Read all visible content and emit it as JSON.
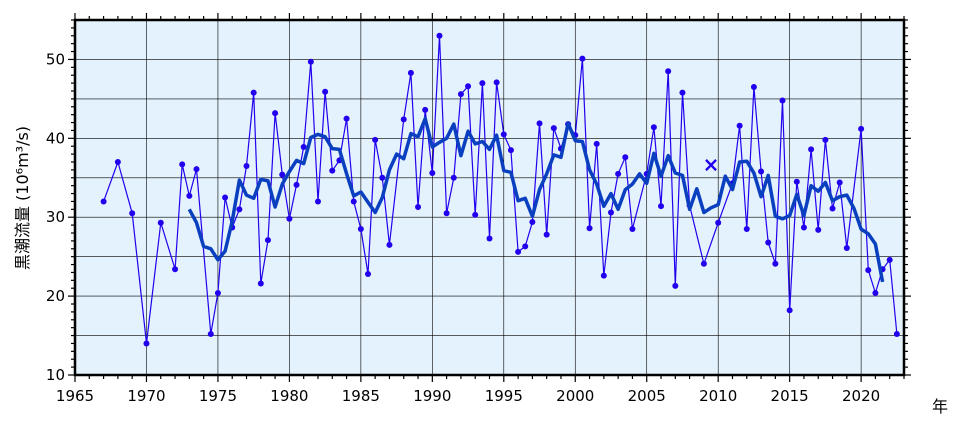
{
  "chart_data": {
    "type": "line",
    "ylabel": "黒潮流量 (10⁶m³/s)",
    "xlabel": "年",
    "xlim": [
      1965,
      2023
    ],
    "ylim": [
      10,
      55
    ],
    "x_ticks": [
      1965,
      1970,
      1975,
      1980,
      1985,
      1990,
      1995,
      2000,
      2005,
      2010,
      2015,
      2020
    ],
    "y_ticks": [
      10,
      20,
      30,
      40,
      50
    ],
    "grid": true,
    "colors": {
      "plot_background": "#e3f2fc",
      "raw_series": "#2200ee",
      "smoothed_series": "#0a3fbf",
      "grid": "#000000"
    },
    "series": [
      {
        "style": "thin-line-with-dots",
        "points": [
          [
            1967,
            32.0
          ],
          [
            1968,
            37.0
          ],
          [
            1969,
            30.5
          ],
          [
            1970,
            14.0
          ],
          [
            1971,
            29.3
          ],
          [
            1972,
            23.4
          ],
          [
            1972.5,
            36.7
          ],
          [
            1973,
            32.7
          ],
          [
            1973.5,
            36.1
          ],
          [
            1974.5,
            15.2
          ],
          [
            1975,
            20.4
          ],
          [
            1975.5,
            32.5
          ],
          [
            1976,
            28.7
          ],
          [
            1976.5,
            31.0
          ],
          [
            1977,
            36.5
          ],
          [
            1977.5,
            45.8
          ],
          [
            1978,
            21.6
          ],
          [
            1978.5,
            27.1
          ],
          [
            1979,
            43.2
          ],
          [
            1979.5,
            35.4
          ],
          [
            1980,
            29.8
          ],
          [
            1980.5,
            34.1
          ],
          [
            1981,
            38.9
          ],
          [
            1981.5,
            49.7
          ],
          [
            1982,
            32.0
          ],
          [
            1982.5,
            45.9
          ],
          [
            1983,
            35.9
          ],
          [
            1983.5,
            37.2
          ],
          [
            1984,
            42.5
          ],
          [
            1984.5,
            32.0
          ],
          [
            1985,
            28.5
          ],
          [
            1985.5,
            22.8
          ],
          [
            1986,
            39.8
          ],
          [
            1986.5,
            35.0
          ],
          [
            1987,
            26.5
          ],
          [
            1988,
            42.4
          ],
          [
            1988.5,
            48.3
          ],
          [
            1989,
            31.3
          ],
          [
            1989.5,
            43.6
          ],
          [
            1990,
            35.6
          ],
          [
            1990.5,
            53.0
          ],
          [
            1991,
            30.5
          ],
          [
            1991.5,
            35.0
          ],
          [
            1992,
            45.6
          ],
          [
            1992.5,
            46.6
          ],
          [
            1993,
            30.3
          ],
          [
            1993.5,
            47.0
          ],
          [
            1994,
            27.3
          ],
          [
            1994.5,
            47.1
          ],
          [
            1995,
            40.5
          ],
          [
            1995.5,
            38.5
          ],
          [
            1996,
            25.6
          ],
          [
            1996.5,
            26.3
          ],
          [
            1997,
            29.4
          ],
          [
            1997.5,
            41.9
          ],
          [
            1998,
            27.8
          ],
          [
            1998.5,
            41.3
          ],
          [
            1999,
            38.7
          ],
          [
            1999.5,
            41.8
          ],
          [
            2000,
            40.4
          ],
          [
            2000.5,
            50.1
          ],
          [
            2001,
            28.6
          ],
          [
            2001.5,
            39.3
          ],
          [
            2002,
            22.6
          ],
          [
            2002.5,
            30.6
          ],
          [
            2003,
            35.5
          ],
          [
            2003.5,
            37.6
          ],
          [
            2004,
            28.5
          ],
          [
            2005,
            35.5
          ],
          [
            2005.5,
            41.4
          ],
          [
            2006,
            31.4
          ],
          [
            2006.5,
            48.5
          ],
          [
            2007,
            21.3
          ],
          [
            2007.5,
            45.8
          ],
          [
            2008,
            31.5
          ],
          [
            2009,
            24.1
          ],
          [
            2010,
            29.3
          ],
          [
            2011,
            34.3
          ],
          [
            2011.5,
            41.6
          ],
          [
            2012,
            28.5
          ],
          [
            2012.5,
            46.5
          ],
          [
            2013,
            35.8
          ],
          [
            2013.5,
            26.8
          ],
          [
            2014,
            24.1
          ],
          [
            2014.5,
            44.8
          ],
          [
            2015,
            18.2
          ],
          [
            2015.5,
            34.5
          ],
          [
            2016,
            28.7
          ],
          [
            2016.5,
            38.6
          ],
          [
            2017,
            28.4
          ],
          [
            2017.5,
            39.8
          ],
          [
            2018,
            31.1
          ],
          [
            2018.5,
            34.4
          ],
          [
            2019,
            26.1
          ],
          [
            2020,
            41.2
          ],
          [
            2020.5,
            23.3
          ],
          [
            2021,
            20.4
          ],
          [
            2021.5,
            23.4
          ],
          [
            2022,
            24.6
          ],
          [
            2022.5,
            15.2
          ]
        ]
      },
      {
        "style": "thick-smoothed-line",
        "points": [
          [
            1973,
            31.0
          ],
          [
            1973.5,
            29.3
          ],
          [
            1974,
            26.3
          ],
          [
            1974.5,
            26.0
          ],
          [
            1975,
            24.6
          ],
          [
            1975.5,
            25.7
          ],
          [
            1976,
            29.5
          ],
          [
            1976.5,
            34.7
          ],
          [
            1977,
            32.8
          ],
          [
            1977.5,
            32.4
          ],
          [
            1978,
            34.8
          ],
          [
            1978.5,
            34.6
          ],
          [
            1979,
            31.3
          ],
          [
            1979.5,
            34.2
          ],
          [
            1980,
            35.8
          ],
          [
            1980.5,
            37.2
          ],
          [
            1981,
            36.8
          ],
          [
            1981.5,
            40.1
          ],
          [
            1982,
            40.5
          ],
          [
            1982.5,
            40.2
          ],
          [
            1983,
            38.7
          ],
          [
            1983.5,
            38.6
          ],
          [
            1984,
            35.5
          ],
          [
            1984.5,
            32.7
          ],
          [
            1985,
            33.2
          ],
          [
            1985.5,
            31.9
          ],
          [
            1986,
            30.6
          ],
          [
            1986.5,
            32.5
          ],
          [
            1987,
            36.0
          ],
          [
            1987.5,
            38.0
          ],
          [
            1988,
            37.4
          ],
          [
            1988.5,
            40.6
          ],
          [
            1989,
            40.2
          ],
          [
            1989.5,
            42.5
          ],
          [
            1990,
            38.9
          ],
          [
            1990.5,
            39.5
          ],
          [
            1991,
            40.0
          ],
          [
            1991.5,
            41.8
          ],
          [
            1992,
            37.8
          ],
          [
            1992.5,
            40.9
          ],
          [
            1993,
            39.3
          ],
          [
            1993.5,
            39.6
          ],
          [
            1994,
            38.6
          ],
          [
            1994.5,
            40.4
          ],
          [
            1995,
            35.9
          ],
          [
            1995.5,
            35.7
          ],
          [
            1996,
            32.1
          ],
          [
            1996.5,
            32.4
          ],
          [
            1997,
            30.1
          ],
          [
            1997.5,
            33.5
          ],
          [
            1998,
            35.5
          ],
          [
            1998.5,
            37.9
          ],
          [
            1999,
            37.6
          ],
          [
            1999.5,
            41.9
          ],
          [
            2000,
            39.7
          ],
          [
            2000.5,
            39.6
          ],
          [
            2001,
            36.0
          ],
          [
            2001.5,
            34.2
          ],
          [
            2002,
            31.4
          ],
          [
            2002.5,
            33.0
          ],
          [
            2003,
            31.0
          ],
          [
            2003.5,
            33.5
          ],
          [
            2004,
            34.2
          ],
          [
            2004.5,
            35.5
          ],
          [
            2005,
            34.3
          ],
          [
            2005.5,
            38.1
          ],
          [
            2006,
            35.2
          ],
          [
            2006.5,
            37.8
          ],
          [
            2007,
            35.6
          ],
          [
            2007.5,
            35.3
          ],
          [
            2008,
            31.0
          ],
          [
            2008.5,
            33.6
          ],
          [
            2009,
            30.6
          ],
          [
            2009.5,
            31.2
          ],
          [
            2010,
            31.6
          ],
          [
            2010.5,
            35.2
          ],
          [
            2011,
            33.5
          ],
          [
            2011.5,
            37.0
          ],
          [
            2012,
            37.1
          ],
          [
            2012.5,
            35.6
          ],
          [
            2013,
            32.6
          ],
          [
            2013.5,
            35.3
          ],
          [
            2014,
            30.1
          ],
          [
            2014.5,
            29.8
          ],
          [
            2015,
            30.2
          ],
          [
            2015.5,
            32.9
          ],
          [
            2016,
            30.2
          ],
          [
            2016.5,
            34.0
          ],
          [
            2017,
            33.3
          ],
          [
            2017.5,
            34.4
          ],
          [
            2018,
            32.1
          ],
          [
            2018.5,
            32.6
          ],
          [
            2019,
            32.8
          ],
          [
            2019.5,
            31.1
          ],
          [
            2020,
            28.5
          ],
          [
            2020.5,
            27.9
          ],
          [
            2021,
            26.6
          ],
          [
            2021.5,
            21.8
          ]
        ]
      }
    ],
    "markers": [
      {
        "symbol": "×",
        "x": 2009.5,
        "y": 36.7
      }
    ]
  }
}
